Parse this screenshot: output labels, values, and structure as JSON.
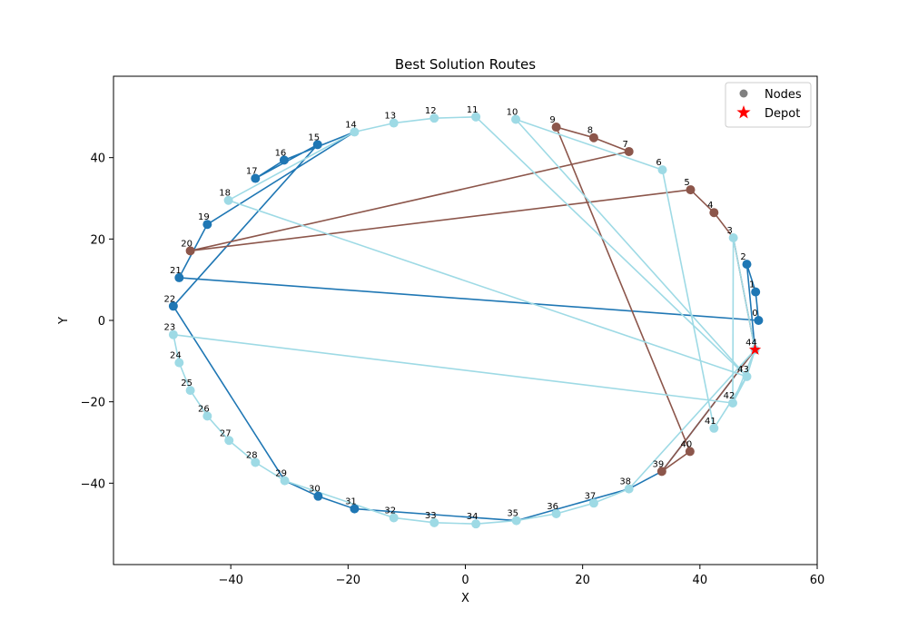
{
  "chart_data": {
    "type": "scatter",
    "title": "Best Solution Routes",
    "xlabel": "X",
    "ylabel": "Y",
    "xlim": [
      -60,
      60
    ],
    "ylim": [
      -60,
      60
    ],
    "xticks": [
      -40,
      -20,
      0,
      20,
      40,
      60
    ],
    "yticks": [
      -40,
      -20,
      0,
      20,
      40
    ],
    "xtick_labels": [
      "−40",
      "−20",
      "0",
      "20",
      "40",
      "60"
    ],
    "ytick_labels": [
      "−40",
      "−20",
      "0",
      "20",
      "40"
    ],
    "grid": false,
    "legend_position": "top-right",
    "legend": [
      {
        "label": "Nodes",
        "marker": "circle",
        "color": "#808080"
      },
      {
        "label": "Depot",
        "marker": "star",
        "color": "#ff0000"
      }
    ],
    "depot": {
      "x": 49.4,
      "y": -7.2
    },
    "nodes": [
      {
        "id": 0,
        "x": 50.0,
        "y": 0.0
      },
      {
        "id": 1,
        "x": 49.5,
        "y": 7.0
      },
      {
        "id": 2,
        "x": 48.0,
        "y": 13.8
      },
      {
        "id": 3,
        "x": 45.7,
        "y": 20.3
      },
      {
        "id": 4,
        "x": 42.4,
        "y": 26.5
      },
      {
        "id": 5,
        "x": 38.4,
        "y": 32.1
      },
      {
        "id": 6,
        "x": 33.6,
        "y": 37.0
      },
      {
        "id": 7,
        "x": 27.9,
        "y": 41.5
      },
      {
        "id": 8,
        "x": 21.9,
        "y": 44.9
      },
      {
        "id": 9,
        "x": 15.5,
        "y": 47.5
      },
      {
        "id": 10,
        "x": 8.6,
        "y": 49.4
      },
      {
        "id": 11,
        "x": 1.8,
        "y": 50.0
      },
      {
        "id": 12,
        "x": -5.3,
        "y": 49.7
      },
      {
        "id": 13,
        "x": -12.2,
        "y": 48.5
      },
      {
        "id": 14,
        "x": -18.9,
        "y": 46.3
      },
      {
        "id": 15,
        "x": -25.2,
        "y": 43.2
      },
      {
        "id": 16,
        "x": -30.9,
        "y": 39.4
      },
      {
        "id": 17,
        "x": -35.8,
        "y": 34.9
      },
      {
        "id": 18,
        "x": -40.4,
        "y": 29.5
      },
      {
        "id": 19,
        "x": -44.0,
        "y": 23.6
      },
      {
        "id": 20,
        "x": -46.9,
        "y": 17.1
      },
      {
        "id": 21,
        "x": -48.8,
        "y": 10.5
      },
      {
        "id": 22,
        "x": -49.8,
        "y": 3.5
      },
      {
        "id": 23,
        "x": -49.8,
        "y": -3.5
      },
      {
        "id": 24,
        "x": -48.8,
        "y": -10.4
      },
      {
        "id": 25,
        "x": -46.9,
        "y": -17.2
      },
      {
        "id": 26,
        "x": -44.0,
        "y": -23.5
      },
      {
        "id": 27,
        "x": -40.3,
        "y": -29.5
      },
      {
        "id": 28,
        "x": -35.8,
        "y": -34.9
      },
      {
        "id": 29,
        "x": -30.8,
        "y": -39.4
      },
      {
        "id": 30,
        "x": -25.1,
        "y": -43.2
      },
      {
        "id": 31,
        "x": -18.9,
        "y": -46.3
      },
      {
        "id": 32,
        "x": -12.2,
        "y": -48.5
      },
      {
        "id": 33,
        "x": -5.3,
        "y": -49.7
      },
      {
        "id": 34,
        "x": 1.8,
        "y": -50.0
      },
      {
        "id": 35,
        "x": 8.7,
        "y": -49.2
      },
      {
        "id": 36,
        "x": 15.5,
        "y": -47.5
      },
      {
        "id": 37,
        "x": 21.9,
        "y": -44.9
      },
      {
        "id": 38,
        "x": 27.9,
        "y": -41.4
      },
      {
        "id": 39,
        "x": 33.5,
        "y": -37.1
      },
      {
        "id": 40,
        "x": 38.3,
        "y": -32.2
      },
      {
        "id": 41,
        "x": 42.4,
        "y": -26.5
      },
      {
        "id": 42,
        "x": 45.6,
        "y": -20.3
      },
      {
        "id": 43,
        "x": 48.0,
        "y": -13.8
      },
      {
        "id": 44,
        "x": 49.4,
        "y": -7.2
      }
    ],
    "routes": [
      {
        "color": "#1f77b4",
        "nodes": [
          44,
          39,
          38,
          35,
          31,
          30,
          29,
          22,
          15,
          17,
          16,
          14,
          19,
          21,
          0,
          1,
          2,
          44
        ]
      },
      {
        "color": "#8c564b",
        "nodes": [
          44,
          3,
          4,
          5,
          20,
          7,
          8,
          9,
          40,
          39,
          44
        ]
      },
      {
        "color": "#9edae5",
        "nodes": [
          44,
          43,
          41,
          6,
          10,
          43,
          11,
          12,
          13,
          14,
          18,
          43,
          42,
          3,
          44,
          42,
          23,
          24,
          25,
          26,
          27,
          28,
          29,
          32,
          33,
          34,
          35,
          36,
          37,
          38,
          44
        ]
      }
    ]
  }
}
